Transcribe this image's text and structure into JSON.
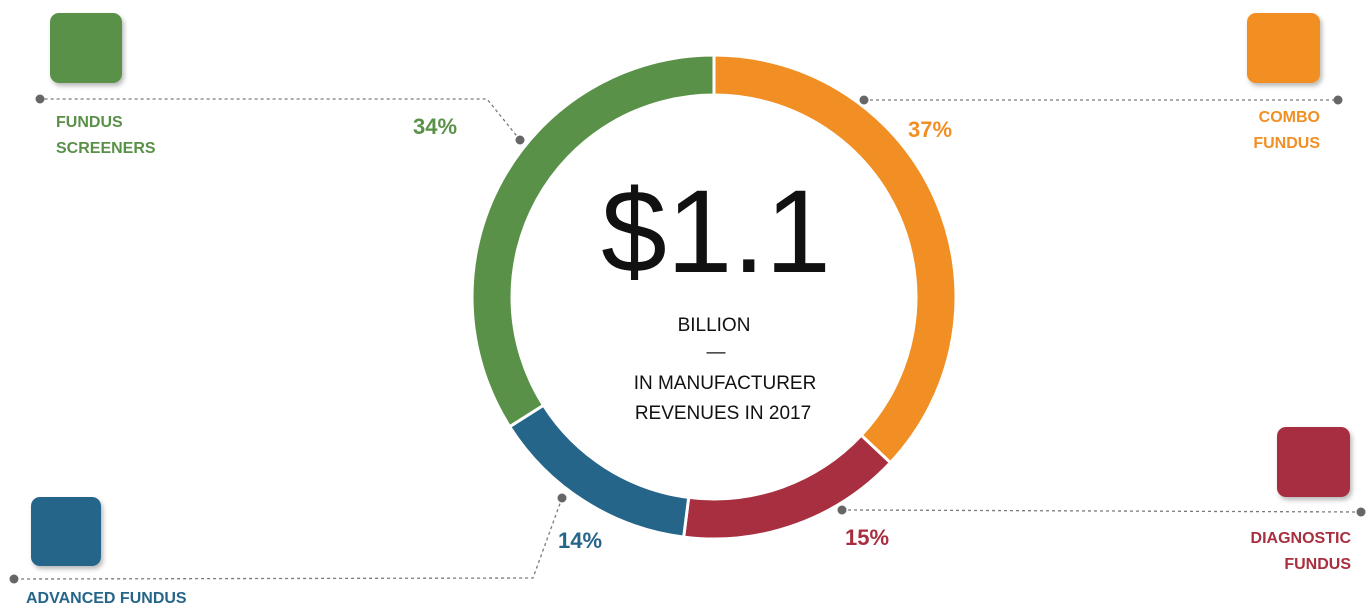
{
  "chart_data": {
    "type": "pie",
    "variant": "donut",
    "center": {
      "value": "$1.1",
      "unit": "BILLION",
      "separator": "—",
      "caption_line1": "IN MANUFACTURER",
      "caption_line2": "REVENUES IN 2017"
    },
    "slices": [
      {
        "id": "combo",
        "label_lines": [
          "COMBO",
          "FUNDUS"
        ],
        "value": 37,
        "value_label": "37%",
        "color": "#F28F24"
      },
      {
        "id": "diagnostic",
        "label_lines": [
          "DIAGNOSTIC",
          "FUNDUS"
        ],
        "value": 15,
        "value_label": "15%",
        "color": "#A72F3F"
      },
      {
        "id": "advanced",
        "label_lines": [
          "ADVANCED FUNDUS"
        ],
        "value": 14,
        "value_label": "14%",
        "color": "#25658A"
      },
      {
        "id": "screeners",
        "label_lines": [
          "FUNDUS",
          "SCREENERS"
        ],
        "value": 34,
        "value_label": "34%",
        "color": "#5A9148"
      }
    ]
  }
}
